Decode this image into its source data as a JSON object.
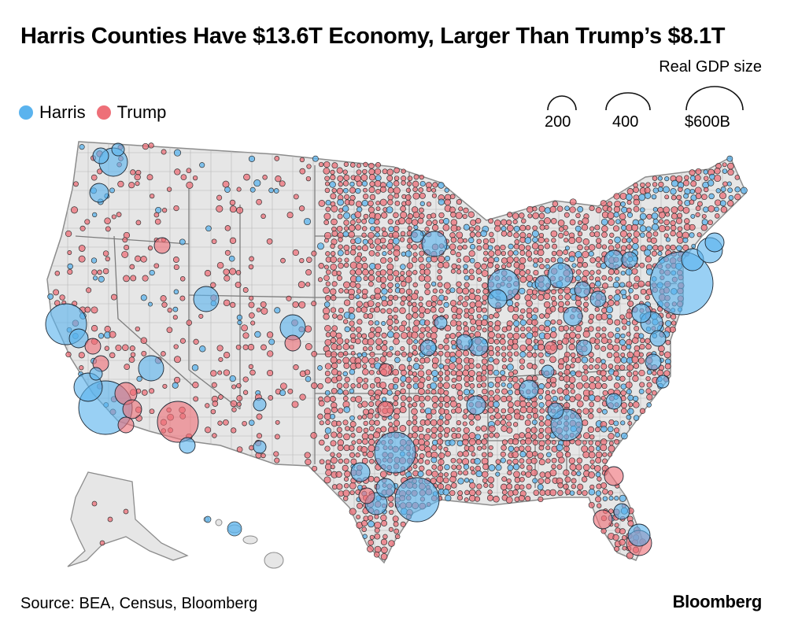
{
  "title": "Harris Counties Have $13.6T Economy, Larger Than Trump’s $8.1T",
  "legend": {
    "harris_label": "Harris",
    "trump_label": "Trump",
    "harris_color": "#5ab3ee",
    "trump_color": "#ee6f78",
    "size_title": "Real GDP size",
    "size_labels": [
      "200",
      "400",
      "$600B"
    ]
  },
  "map": {
    "land_color": "#e6e6e6",
    "border_color": "#9a9a9a",
    "regions": [
      "Contiguous United States",
      "Alaska",
      "Hawaii"
    ]
  },
  "metros": [
    {
      "name": "New York",
      "party": "Harris",
      "gdp_billion": 600
    },
    {
      "name": "Los Angeles",
      "party": "Harris",
      "gdp_billion": 450
    },
    {
      "name": "San Francisco Bay Area",
      "party": "Harris",
      "gdp_billion": 300
    },
    {
      "name": "Chicago",
      "party": "Harris",
      "gdp_billion": 250
    },
    {
      "name": "Dallas",
      "party": "Harris",
      "gdp_billion": 230
    },
    {
      "name": "Houston",
      "party": "Harris",
      "gdp_billion": 220
    },
    {
      "name": "Seattle",
      "party": "Harris",
      "gdp_billion": 200
    },
    {
      "name": "Washington DC",
      "party": "Harris",
      "gdp_billion": 180
    },
    {
      "name": "Boston",
      "party": "Harris",
      "gdp_billion": 160
    },
    {
      "name": "Atlanta",
      "party": "Harris",
      "gdp_billion": 150
    },
    {
      "name": "Phoenix",
      "party": "Trump",
      "gdp_billion": 300
    },
    {
      "name": "Orange County area",
      "party": "Trump",
      "gdp_billion": 90
    },
    {
      "name": "Riverside",
      "party": "Trump",
      "gdp_billion": 70
    },
    {
      "name": "Tampa",
      "party": "Trump",
      "gdp_billion": 90
    },
    {
      "name": "Miami area",
      "party": "Trump",
      "gdp_billion": 110
    }
  ],
  "source": "Source: BEA, Census, Bloomberg",
  "brand": "Bloomberg"
}
